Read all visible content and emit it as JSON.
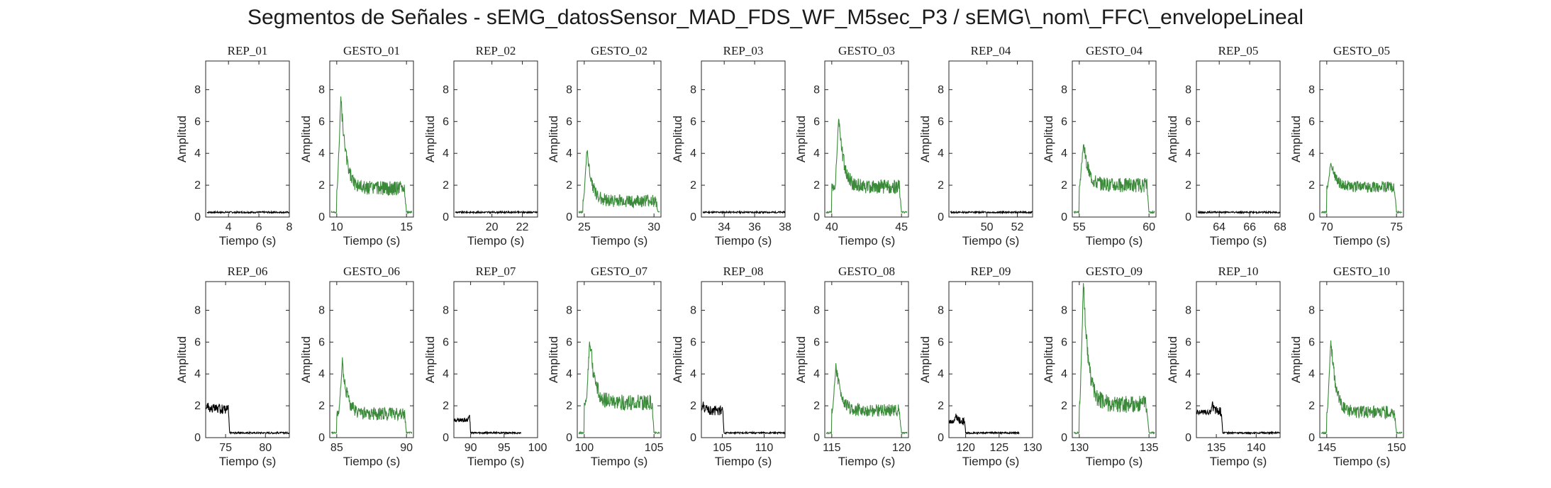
{
  "figure": {
    "title": "Segmentos de Señales - sEMG_datosSensor_MAD_FDS_WF_M5sec_P3 / sEMG\\_nom\\_FFC\\_envelopeLineal"
  },
  "colors": {
    "rep": "#000000",
    "gesto": "#3a8a3a",
    "axis": "#262626"
  },
  "chart_data": [
    {
      "type": "line",
      "title": "REP_01",
      "xlabel": "Tiempo (s)",
      "ylabel": "Amplitud",
      "xlim": [
        2.5,
        8
      ],
      "ylim": [
        0,
        9.8
      ],
      "xticks": [
        4,
        6,
        8
      ],
      "yticks": [
        0,
        2,
        4,
        6,
        8
      ],
      "color": "rep",
      "x_start": 2.6,
      "x_end": 8,
      "baseline": 0.3,
      "noise": 0.1,
      "segments": []
    },
    {
      "type": "line",
      "title": "GESTO_01",
      "xlabel": "Tiempo (s)",
      "ylabel": "Amplitud",
      "xlim": [
        9.5,
        15.5
      ],
      "ylim": [
        0,
        9.8
      ],
      "xticks": [
        10,
        15
      ],
      "yticks": [
        0,
        2,
        4,
        6,
        8
      ],
      "color": "gesto",
      "x_start": 9.6,
      "x_end": 15.4,
      "baseline": 0.3,
      "noise": 0.1,
      "segments": [
        {
          "t0": 10,
          "t1": 15,
          "peak": 7.6,
          "peak_t": 10.3,
          "level": 1.8,
          "noise": 0.45
        }
      ]
    },
    {
      "type": "line",
      "title": "REP_02",
      "xlabel": "Tiempo (s)",
      "ylabel": "Amplitud",
      "xlim": [
        17.5,
        23
      ],
      "ylim": [
        0,
        9.8
      ],
      "xticks": [
        20,
        22
      ],
      "yticks": [
        0,
        2,
        4,
        6,
        8
      ],
      "color": "rep",
      "x_start": 17.6,
      "x_end": 23,
      "baseline": 0.3,
      "noise": 0.1,
      "segments": []
    },
    {
      "type": "line",
      "title": "GESTO_02",
      "xlabel": "Tiempo (s)",
      "ylabel": "Amplitud",
      "xlim": [
        24.5,
        30.5
      ],
      "ylim": [
        0,
        9.8
      ],
      "xticks": [
        25,
        30
      ],
      "yticks": [
        0,
        2,
        4,
        6,
        8
      ],
      "color": "gesto",
      "x_start": 24.6,
      "x_end": 30.4,
      "baseline": 0.3,
      "noise": 0.1,
      "segments": [
        {
          "t0": 24.9,
          "t1": 30.3,
          "peak": 4.2,
          "peak_t": 25.2,
          "level": 1.0,
          "noise": 0.4
        }
      ]
    },
    {
      "type": "line",
      "title": "REP_03",
      "xlabel": "Tiempo (s)",
      "ylabel": "Amplitud",
      "xlim": [
        32.5,
        38
      ],
      "ylim": [
        0,
        9.8
      ],
      "xticks": [
        34,
        36,
        38
      ],
      "yticks": [
        0,
        2,
        4,
        6,
        8
      ],
      "color": "rep",
      "x_start": 32.6,
      "x_end": 38,
      "baseline": 0.3,
      "noise": 0.1,
      "segments": []
    },
    {
      "type": "line",
      "title": "GESTO_03",
      "xlabel": "Tiempo (s)",
      "ylabel": "Amplitud",
      "xlim": [
        39.5,
        45.5
      ],
      "ylim": [
        0,
        9.8
      ],
      "xticks": [
        40,
        45
      ],
      "yticks": [
        0,
        2,
        4,
        6,
        8
      ],
      "color": "gesto",
      "x_start": 39.6,
      "x_end": 45.4,
      "baseline": 0.3,
      "noise": 0.1,
      "segments": [
        {
          "t0": 40,
          "t1": 45,
          "peak": 6.4,
          "peak_t": 40.5,
          "level": 1.9,
          "noise": 0.45
        }
      ]
    },
    {
      "type": "line",
      "title": "REP_04",
      "xlabel": "Tiempo (s)",
      "ylabel": "Amplitud",
      "xlim": [
        47.5,
        53
      ],
      "ylim": [
        0,
        9.8
      ],
      "xticks": [
        50,
        52
      ],
      "yticks": [
        0,
        2,
        4,
        6,
        8
      ],
      "color": "rep",
      "x_start": 47.6,
      "x_end": 53,
      "baseline": 0.3,
      "noise": 0.1,
      "segments": []
    },
    {
      "type": "line",
      "title": "GESTO_04",
      "xlabel": "Tiempo (s)",
      "ylabel": "Amplitud",
      "xlim": [
        54.5,
        60.5
      ],
      "ylim": [
        0,
        9.8
      ],
      "xticks": [
        55,
        60
      ],
      "yticks": [
        0,
        2,
        4,
        6,
        8
      ],
      "color": "gesto",
      "x_start": 54.6,
      "x_end": 60.4,
      "baseline": 0.3,
      "noise": 0.1,
      "segments": [
        {
          "t0": 55,
          "t1": 60,
          "peak": 4.6,
          "peak_t": 55.3,
          "level": 2.0,
          "noise": 0.45
        }
      ]
    },
    {
      "type": "line",
      "title": "REP_05",
      "xlabel": "Tiempo (s)",
      "ylabel": "Amplitud",
      "xlim": [
        62.5,
        68
      ],
      "ylim": [
        0,
        9.8
      ],
      "xticks": [
        64,
        66,
        68
      ],
      "yticks": [
        0,
        2,
        4,
        6,
        8
      ],
      "color": "rep",
      "x_start": 62.6,
      "x_end": 68,
      "baseline": 0.3,
      "noise": 0.1,
      "segments": []
    },
    {
      "type": "line",
      "title": "GESTO_05",
      "xlabel": "Tiempo (s)",
      "ylabel": "Amplitud",
      "xlim": [
        69.5,
        75.5
      ],
      "ylim": [
        0,
        9.8
      ],
      "xticks": [
        70,
        75
      ],
      "yticks": [
        0,
        2,
        4,
        6,
        8
      ],
      "color": "gesto",
      "x_start": 69.6,
      "x_end": 75.4,
      "baseline": 0.3,
      "noise": 0.1,
      "segments": [
        {
          "t0": 70,
          "t1": 75,
          "peak": 3.5,
          "peak_t": 70.3,
          "level": 1.9,
          "noise": 0.35
        }
      ]
    },
    {
      "type": "line",
      "title": "REP_06",
      "xlabel": "Tiempo (s)",
      "ylabel": "Amplitud",
      "xlim": [
        72.5,
        83
      ],
      "ylim": [
        0,
        9.8
      ],
      "xticks": [
        75,
        80
      ],
      "yticks": [
        0,
        2,
        4,
        6,
        8
      ],
      "color": "rep",
      "x_start": 72.5,
      "x_end": 83,
      "baseline": 0.3,
      "noise": 0.1,
      "segments": [
        {
          "t0": 72.5,
          "t1": 75.5,
          "peak": 2.0,
          "peak_t": 72.7,
          "level": 1.8,
          "noise": 0.3
        }
      ]
    },
    {
      "type": "line",
      "title": "GESTO_06",
      "xlabel": "Tiempo (s)",
      "ylabel": "Amplitud",
      "xlim": [
        84.5,
        90.5
      ],
      "ylim": [
        0,
        9.8
      ],
      "xticks": [
        85,
        90
      ],
      "yticks": [
        0,
        2,
        4,
        6,
        8
      ],
      "color": "gesto",
      "x_start": 84.6,
      "x_end": 90.4,
      "baseline": 0.3,
      "noise": 0.1,
      "segments": [
        {
          "t0": 85,
          "t1": 90,
          "peak": 4.7,
          "peak_t": 85.4,
          "level": 1.5,
          "noise": 0.4
        }
      ]
    },
    {
      "type": "line",
      "title": "REP_07",
      "xlabel": "Tiempo (s)",
      "ylabel": "Amplitud",
      "xlim": [
        87.5,
        100
      ],
      "ylim": [
        0,
        9.8
      ],
      "xticks": [
        90,
        95,
        100
      ],
      "yticks": [
        0,
        2,
        4,
        6,
        8
      ],
      "color": "rep",
      "x_start": 87.5,
      "x_end": 97.5,
      "baseline": 0.3,
      "noise": 0.1,
      "segments": [
        {
          "t0": 87.5,
          "t1": 90,
          "peak": 1.5,
          "peak_t": 89.8,
          "level": 1.1,
          "noise": 0.25
        }
      ]
    },
    {
      "type": "line",
      "title": "GESTO_07",
      "xlabel": "Tiempo (s)",
      "ylabel": "Amplitud",
      "xlim": [
        99.5,
        105.5
      ],
      "ylim": [
        0,
        9.8
      ],
      "xticks": [
        100,
        105
      ],
      "yticks": [
        0,
        2,
        4,
        6,
        8
      ],
      "color": "gesto",
      "x_start": 99.6,
      "x_end": 105.4,
      "baseline": 0.3,
      "noise": 0.1,
      "segments": [
        {
          "t0": 100,
          "t1": 105,
          "peak": 6.2,
          "peak_t": 100.4,
          "level": 2.2,
          "noise": 0.5
        }
      ]
    },
    {
      "type": "line",
      "title": "REP_08",
      "xlabel": "Tiempo (s)",
      "ylabel": "Amplitud",
      "xlim": [
        102.5,
        112.5
      ],
      "ylim": [
        0,
        9.8
      ],
      "xticks": [
        105,
        110
      ],
      "yticks": [
        0,
        2,
        4,
        6,
        8
      ],
      "color": "rep",
      "x_start": 102.5,
      "x_end": 112.5,
      "baseline": 0.3,
      "noise": 0.1,
      "segments": [
        {
          "t0": 102.5,
          "t1": 105.2,
          "peak": 2.0,
          "peak_t": 102.7,
          "level": 1.7,
          "noise": 0.3
        }
      ]
    },
    {
      "type": "line",
      "title": "GESTO_08",
      "xlabel": "Tiempo (s)",
      "ylabel": "Amplitud",
      "xlim": [
        114.5,
        120.5
      ],
      "ylim": [
        0,
        9.8
      ],
      "xticks": [
        115,
        120
      ],
      "yticks": [
        0,
        2,
        4,
        6,
        8
      ],
      "color": "gesto",
      "x_start": 114.6,
      "x_end": 120.4,
      "baseline": 0.3,
      "noise": 0.1,
      "segments": [
        {
          "t0": 115,
          "t1": 120,
          "peak": 4.6,
          "peak_t": 115.3,
          "level": 1.7,
          "noise": 0.4
        }
      ]
    },
    {
      "type": "line",
      "title": "REP_09",
      "xlabel": "Tiempo (s)",
      "ylabel": "Amplitud",
      "xlim": [
        117.5,
        130
      ],
      "ylim": [
        0,
        9.8
      ],
      "xticks": [
        120,
        125,
        130
      ],
      "yticks": [
        0,
        2,
        4,
        6,
        8
      ],
      "color": "rep",
      "x_start": 117.5,
      "x_end": 128,
      "baseline": 0.3,
      "noise": 0.1,
      "segments": [
        {
          "t0": 117.5,
          "t1": 120,
          "peak": 1.4,
          "peak_t": 118.5,
          "level": 1.0,
          "noise": 0.25
        }
      ]
    },
    {
      "type": "line",
      "title": "GESTO_09",
      "xlabel": "Tiempo (s)",
      "ylabel": "Amplitud",
      "xlim": [
        129.5,
        135.5
      ],
      "ylim": [
        0,
        9.8
      ],
      "xticks": [
        130,
        135
      ],
      "yticks": [
        0,
        2,
        4,
        6,
        8
      ],
      "color": "gesto",
      "x_start": 129.6,
      "x_end": 135.4,
      "baseline": 0.3,
      "noise": 0.1,
      "segments": [
        {
          "t0": 130,
          "t1": 135,
          "peak": 9.8,
          "peak_t": 130.3,
          "level": 2.1,
          "noise": 0.55
        }
      ]
    },
    {
      "type": "line",
      "title": "REP_10",
      "xlabel": "Tiempo (s)",
      "ylabel": "Amplitud",
      "xlim": [
        132.5,
        143
      ],
      "ylim": [
        0,
        9.8
      ],
      "xticks": [
        135,
        140
      ],
      "yticks": [
        0,
        2,
        4,
        6,
        8
      ],
      "color": "rep",
      "x_start": 132.5,
      "x_end": 143,
      "baseline": 0.3,
      "noise": 0.1,
      "segments": [
        {
          "t0": 132.5,
          "t1": 135.8,
          "peak": 2.0,
          "peak_t": 134.5,
          "level": 1.6,
          "noise": 0.3
        }
      ]
    },
    {
      "type": "line",
      "title": "GESTO_10",
      "xlabel": "Tiempo (s)",
      "ylabel": "Amplitud",
      "xlim": [
        144.5,
        150.5
      ],
      "ylim": [
        0,
        9.8
      ],
      "xticks": [
        145,
        150
      ],
      "yticks": [
        0,
        2,
        4,
        6,
        8
      ],
      "color": "gesto",
      "x_start": 144.6,
      "x_end": 150.4,
      "baseline": 0.3,
      "noise": 0.1,
      "segments": [
        {
          "t0": 145,
          "t1": 150,
          "peak": 6.2,
          "peak_t": 145.3,
          "level": 1.6,
          "noise": 0.4
        }
      ]
    }
  ]
}
